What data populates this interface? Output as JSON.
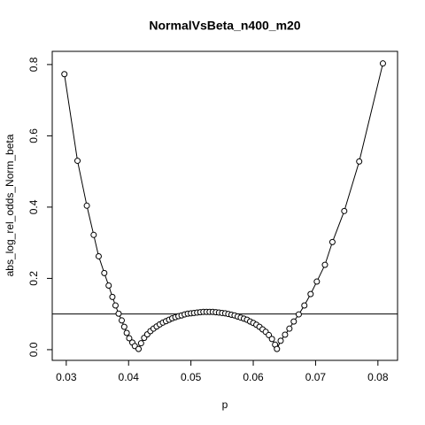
{
  "chart_data": {
    "type": "scatter",
    "title": "NormalVsBeta_n400_m20",
    "x_label": "p",
    "y_label": "abs_log_rel_odds_Norm_beta",
    "xlim": [
      0.02775,
      0.08315
    ],
    "ylim": [
      -0.03,
      0.837
    ],
    "xticks": [
      0.03,
      0.04,
      0.05,
      0.06,
      0.07,
      0.08
    ],
    "yticks": [
      {
        "value": 0,
        "label": "0.0"
      },
      0.2,
      0.4,
      0.6,
      0.8
    ],
    "hline": 0.1,
    "color": "#000000",
    "x": [
      0.0297,
      0.0318,
      0.0333,
      0.0344,
      0.0352,
      0.0361,
      0.0368,
      0.0374,
      0.0379,
      0.0384,
      0.0389,
      0.0393,
      0.0397,
      0.0401,
      0.0406,
      0.041,
      0.0416,
      0.042,
      0.0425,
      0.043,
      0.0435,
      0.044,
      0.0445,
      0.045,
      0.0455,
      0.046,
      0.0465,
      0.047,
      0.0475,
      0.048,
      0.0485,
      0.049,
      0.0495,
      0.05,
      0.0505,
      0.051,
      0.0515,
      0.052,
      0.0525,
      0.053,
      0.0535,
      0.054,
      0.0545,
      0.055,
      0.0555,
      0.056,
      0.0565,
      0.057,
      0.0575,
      0.058,
      0.0585,
      0.059,
      0.0595,
      0.06,
      0.0605,
      0.061,
      0.0615,
      0.062,
      0.0625,
      0.063,
      0.0635,
      0.0638,
      0.0644,
      0.0651,
      0.0658,
      0.0665,
      0.0673,
      0.0682,
      0.0692,
      0.0702,
      0.0715,
      0.0727,
      0.0746,
      0.077,
      0.0808
    ],
    "values": [
      0.773,
      0.53,
      0.404,
      0.322,
      0.262,
      0.215,
      0.18,
      0.148,
      0.124,
      0.101,
      0.082,
      0.064,
      0.047,
      0.032,
      0.02,
      0.01,
      0.002,
      0.018,
      0.033,
      0.043,
      0.052,
      0.059,
      0.065,
      0.071,
      0.076,
      0.08,
      0.084,
      0.088,
      0.091,
      0.094,
      0.096,
      0.099,
      0.101,
      0.102,
      0.103,
      0.104,
      0.105,
      0.106,
      0.106,
      0.106,
      0.106,
      0.105,
      0.104,
      0.103,
      0.102,
      0.1,
      0.098,
      0.096,
      0.093,
      0.09,
      0.087,
      0.084,
      0.079,
      0.075,
      0.07,
      0.064,
      0.057,
      0.05,
      0.041,
      0.03,
      0.014,
      0.002,
      0.025,
      0.042,
      0.059,
      0.079,
      0.099,
      0.124,
      0.156,
      0.191,
      0.238,
      0.302,
      0.389,
      0.528,
      0.803
    ]
  }
}
